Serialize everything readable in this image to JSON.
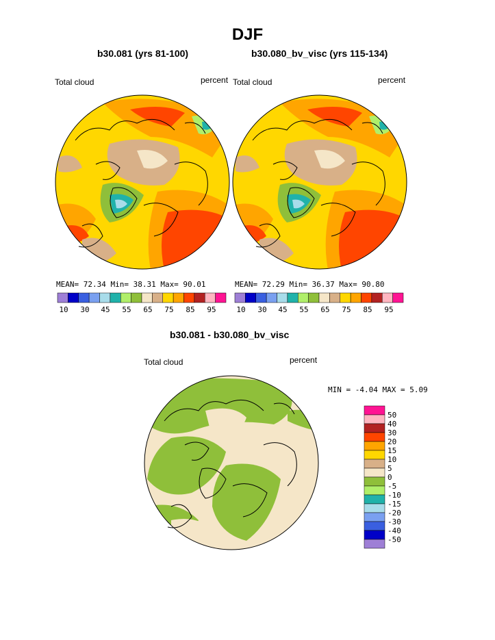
{
  "title": "DJF",
  "colors": {
    "ocean_fill": "#f5e6c8",
    "land_line": "#000000",
    "abs_palette": [
      "#9e7fd6",
      "#0000c8",
      "#3a5fe0",
      "#7aa0f0",
      "#a8dcea",
      "#20b2aa",
      "#b0ef6a",
      "#8fbf3a",
      "#f5e6c8",
      "#d8b088",
      "#ffd700",
      "#ffa500",
      "#ff4500",
      "#b22222",
      "#ffb6c1",
      "#ff1493"
    ],
    "diff_palette": [
      "#9e7fd6",
      "#0000c8",
      "#3a5fe0",
      "#7aa0f0",
      "#a8dcea",
      "#20b2aa",
      "#b0ef6a",
      "#8fbf3a",
      "#f5e6c8",
      "#d8b088",
      "#ffd700",
      "#ffa500",
      "#ff4500",
      "#b22222",
      "#ffb6c1",
      "#ff1493"
    ]
  },
  "panels": [
    {
      "title": "b30.081 (yrs 81-100)",
      "left_label": "Total cloud",
      "right_label": "percent",
      "stats": "MEAN=  72.34  Min=  38.31  Max=  90.01",
      "ticks": [
        "10",
        "30",
        "45",
        "55",
        "65",
        "75",
        "85",
        "95"
      ]
    },
    {
      "title": "b30.080_bv_visc (yrs 115-134)",
      "left_label": "Total cloud",
      "right_label": "percent",
      "stats": "MEAN=  72.29  Min=  36.37  Max=  90.80",
      "ticks": [
        "10",
        "30",
        "45",
        "55",
        "65",
        "75",
        "85",
        "95"
      ]
    }
  ],
  "diff": {
    "title": "b30.081 - b30.080_bv_visc",
    "left_label": "Total cloud",
    "right_label": "percent",
    "stats": "MIN =  -4.04 MAX =   5.09",
    "ticks": [
      "50",
      "40",
      "30",
      "20",
      "15",
      "10",
      "5",
      "0",
      "-5",
      "-10",
      "-15",
      "-20",
      "-30",
      "-40",
      "-50"
    ]
  }
}
